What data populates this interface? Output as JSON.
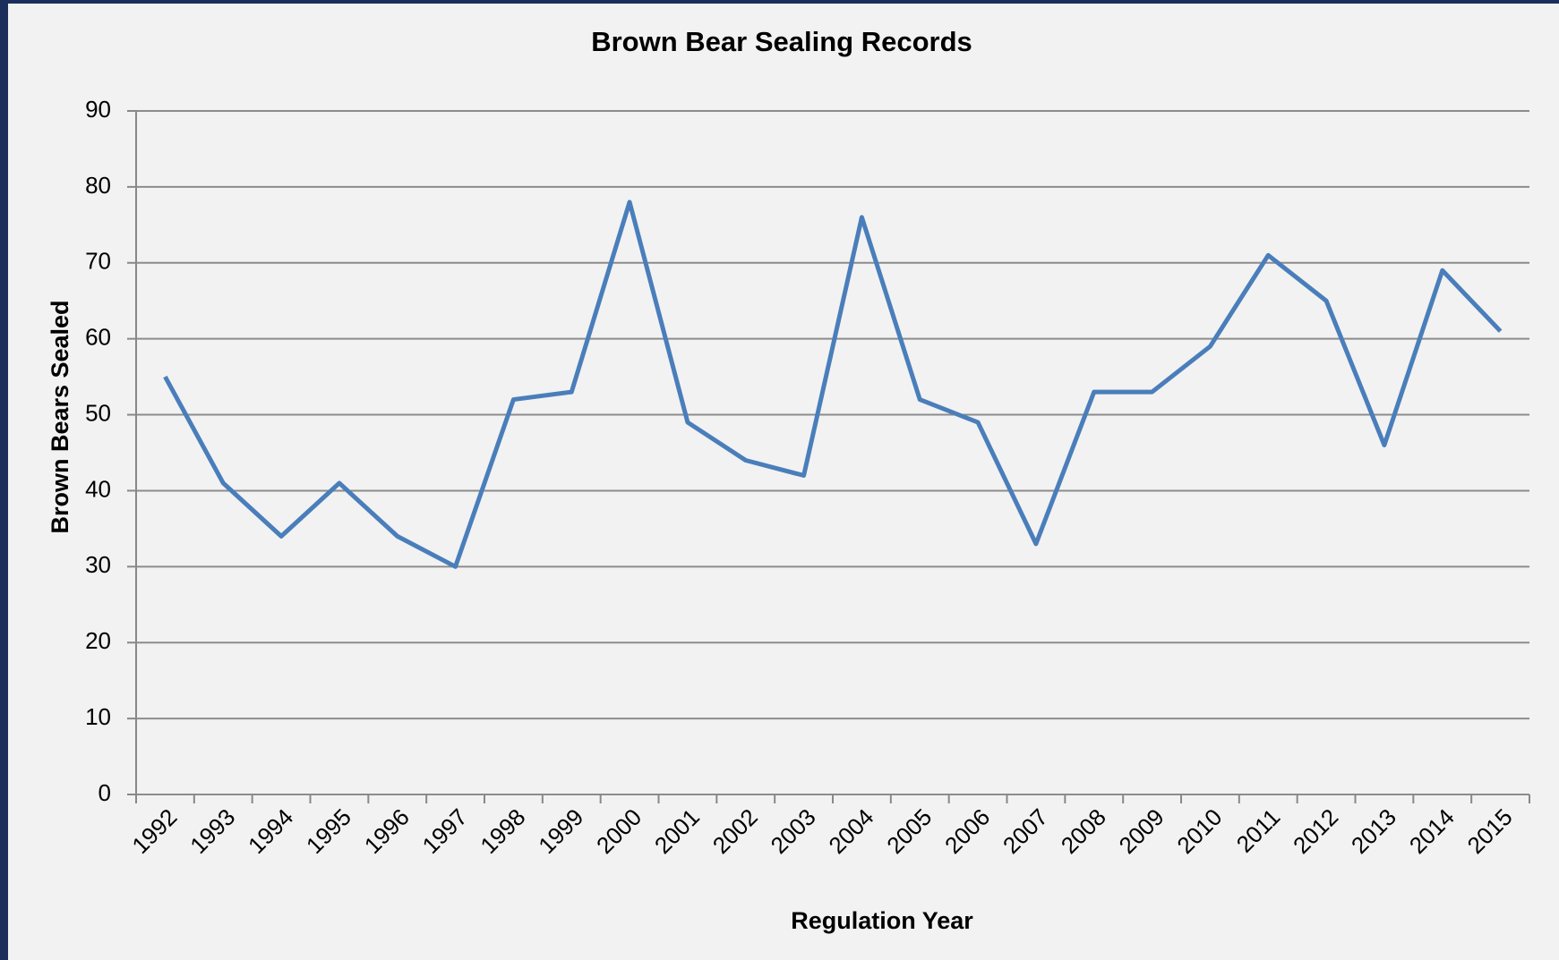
{
  "chart_data": {
    "type": "line",
    "title": "Brown Bear Sealing Records",
    "x_label": "Regulation Year",
    "y_label": "Brown Bears Sealed",
    "categories": [
      "1992",
      "1993",
      "1994",
      "1995",
      "1996",
      "1997",
      "1998",
      "1999",
      "2000",
      "2001",
      "2002",
      "2003",
      "2004",
      "2005",
      "2006",
      "2007",
      "2008",
      "2009",
      "2010",
      "2011",
      "2012",
      "2013",
      "2014",
      "2015"
    ],
    "series": [
      {
        "name": "Brown Bears Sealed",
        "color": "#4a7ebb",
        "values": [
          55,
          41,
          34,
          41,
          34,
          30,
          52,
          53,
          78,
          49,
          44,
          42,
          76,
          52,
          49,
          33,
          53,
          53,
          59,
          71,
          65,
          46,
          69,
          61
        ]
      }
    ],
    "ylim": [
      0,
      90
    ],
    "yticks": [
      0,
      10,
      20,
      30,
      40,
      50,
      60,
      70,
      80,
      90
    ],
    "grid": true
  }
}
